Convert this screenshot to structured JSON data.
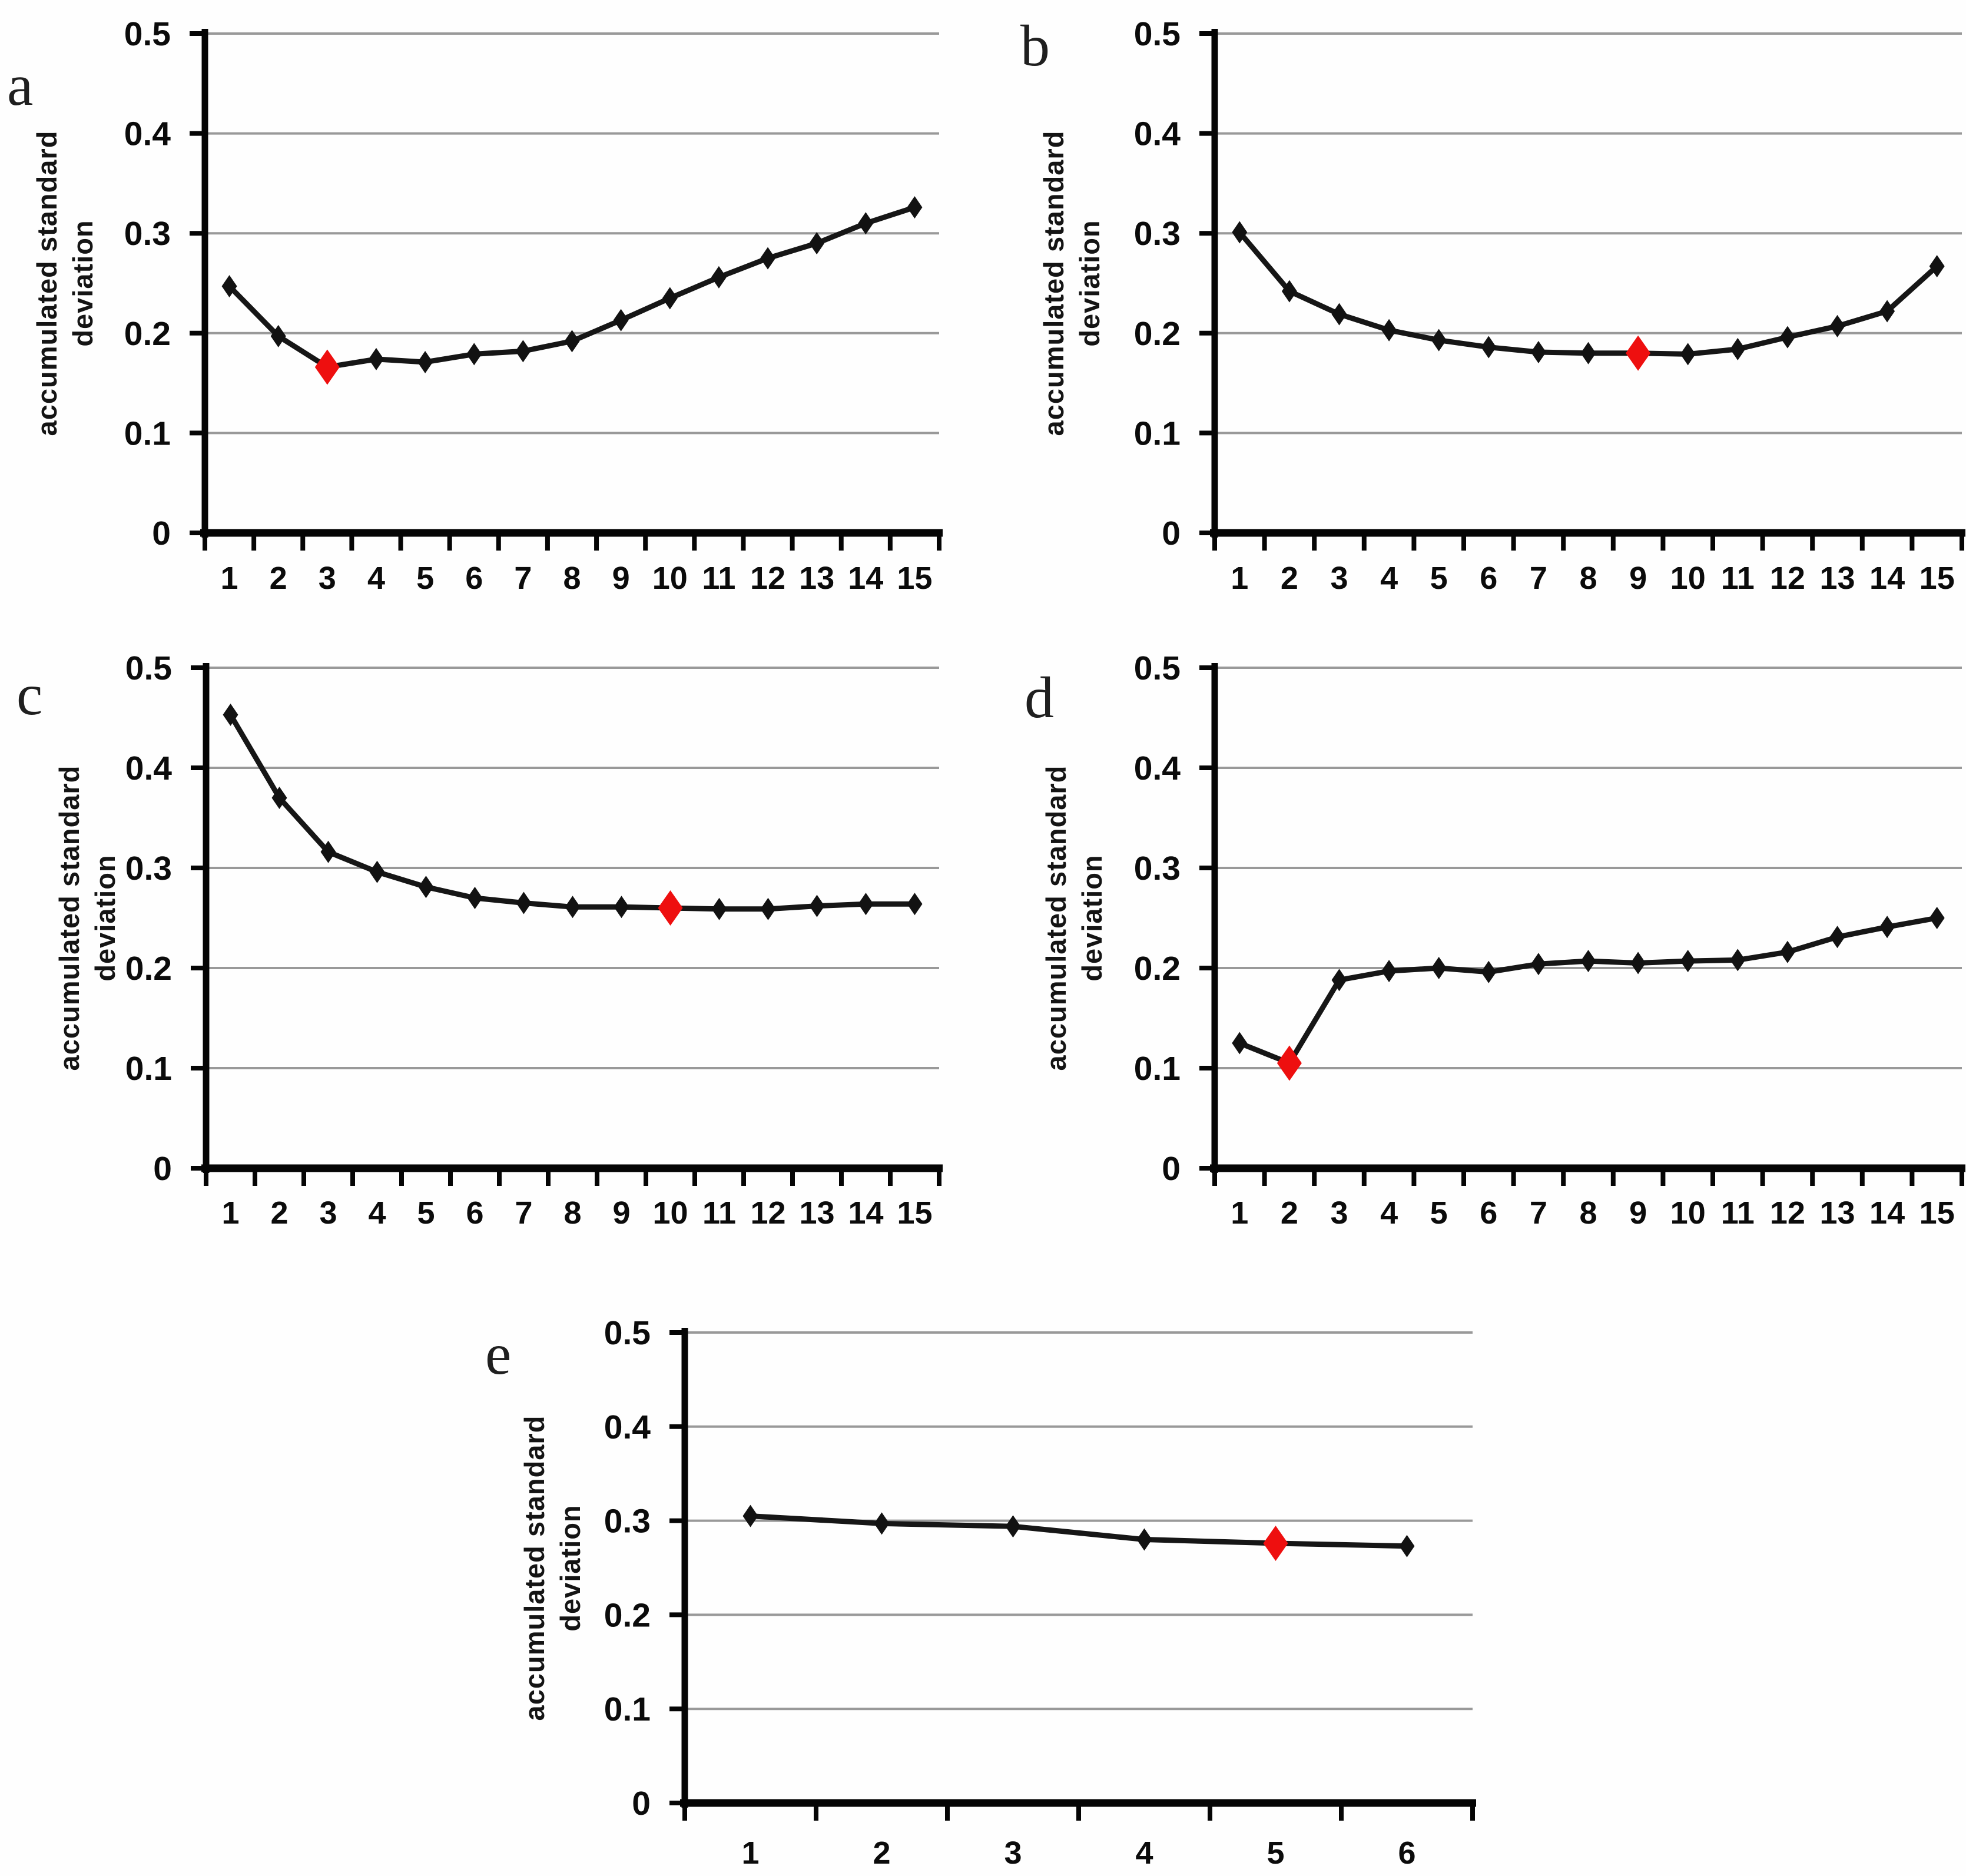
{
  "figure": {
    "panels": [
      {
        "letter": "a",
        "ylabel_lines": [
          "accumulated standard",
          "deviation"
        ]
      },
      {
        "letter": "b",
        "ylabel_lines": [
          "accumulated standard",
          "deviation"
        ]
      },
      {
        "letter": "c",
        "ylabel_lines": [
          "accumulated standard",
          "deviation"
        ]
      },
      {
        "letter": "d",
        "ylabel_lines": [
          "accumulated standard",
          "deviation"
        ]
      },
      {
        "letter": "e",
        "ylabel_lines": [
          "accumulated standard",
          "deviation"
        ]
      }
    ]
  },
  "style": {
    "line_color": "#161616",
    "marker_color": "#121212",
    "highlight_color": "#ee0f0f",
    "grid_color": "#999999",
    "axis_color": "#050505"
  },
  "chart_data": [
    {
      "id": "a",
      "type": "line",
      "title": "",
      "xlabel": "",
      "ylabel": "accumulated standard deviation",
      "x": [
        1,
        2,
        3,
        4,
        5,
        6,
        7,
        8,
        9,
        10,
        11,
        12,
        13,
        14,
        15
      ],
      "values": [
        0.247,
        0.197,
        0.166,
        0.174,
        0.171,
        0.179,
        0.182,
        0.192,
        0.213,
        0.235,
        0.256,
        0.275,
        0.29,
        0.31,
        0.326
      ],
      "highlight_x": 3,
      "highlight_value": 0.166,
      "ylim": [
        0,
        0.5
      ],
      "yticks": [
        0,
        0.1,
        0.2,
        0.3,
        0.4,
        0.5
      ],
      "ytick_labels": [
        "0",
        "0.1",
        "0.2",
        "0.3",
        "0.4",
        "0.5"
      ],
      "grid": true,
      "legend": "none",
      "marker": "diamond"
    },
    {
      "id": "b",
      "type": "line",
      "title": "",
      "xlabel": "",
      "ylabel": "accumulated standard deviation",
      "x": [
        1,
        2,
        3,
        4,
        5,
        6,
        7,
        8,
        9,
        10,
        11,
        12,
        13,
        14,
        15
      ],
      "values": [
        0.301,
        0.242,
        0.219,
        0.203,
        0.193,
        0.186,
        0.181,
        0.18,
        0.18,
        0.179,
        0.184,
        0.196,
        0.207,
        0.222,
        0.267
      ],
      "highlight_x": 9,
      "highlight_value": 0.18,
      "ylim": [
        0,
        0.5
      ],
      "yticks": [
        0,
        0.1,
        0.2,
        0.3,
        0.4,
        0.5
      ],
      "ytick_labels": [
        "0",
        "0.1",
        "0.2",
        "0.3",
        "0.4",
        "0.5"
      ],
      "grid": true,
      "legend": "none",
      "marker": "diamond"
    },
    {
      "id": "c",
      "type": "line",
      "title": "",
      "xlabel": "",
      "ylabel": "accumulated standard deviation",
      "x": [
        1,
        2,
        3,
        4,
        5,
        6,
        7,
        8,
        9,
        10,
        11,
        12,
        13,
        14,
        15
      ],
      "values": [
        0.453,
        0.37,
        0.316,
        0.296,
        0.281,
        0.27,
        0.265,
        0.261,
        0.261,
        0.26,
        0.259,
        0.259,
        0.262,
        0.264,
        0.264
      ],
      "highlight_x": 10,
      "highlight_value": 0.26,
      "ylim": [
        0,
        0.5
      ],
      "yticks": [
        0,
        0.1,
        0.2,
        0.3,
        0.4,
        0.5
      ],
      "ytick_labels": [
        "0",
        "0.1",
        "0.2",
        "0.3",
        "0.4",
        "0.5"
      ],
      "grid": true,
      "legend": "none",
      "marker": "diamond"
    },
    {
      "id": "d",
      "type": "line",
      "title": "",
      "xlabel": "",
      "ylabel": "accumulated standard deviation",
      "x": [
        1,
        2,
        3,
        4,
        5,
        6,
        7,
        8,
        9,
        10,
        11,
        12,
        13,
        14,
        15
      ],
      "values": [
        0.125,
        0.105,
        0.188,
        0.197,
        0.2,
        0.196,
        0.204,
        0.207,
        0.205,
        0.207,
        0.208,
        0.216,
        0.231,
        0.241,
        0.25
      ],
      "highlight_x": 2,
      "highlight_value": 0.105,
      "ylim": [
        0,
        0.5
      ],
      "yticks": [
        0,
        0.1,
        0.2,
        0.3,
        0.4,
        0.5
      ],
      "ytick_labels": [
        "0",
        "0.1",
        "0.2",
        "0.3",
        "0.4",
        "0.5"
      ],
      "grid": true,
      "legend": "none",
      "marker": "diamond"
    },
    {
      "id": "e",
      "type": "line",
      "title": "",
      "xlabel": "",
      "ylabel": "accumulated standard deviation",
      "x": [
        1,
        2,
        3,
        4,
        5,
        6
      ],
      "values": [
        0.305,
        0.297,
        0.294,
        0.28,
        0.276,
        0.273
      ],
      "highlight_x": 5,
      "highlight_value": 0.276,
      "ylim": [
        0,
        0.5
      ],
      "yticks": [
        0,
        0.1,
        0.2,
        0.3,
        0.4,
        0.5
      ],
      "ytick_labels": [
        "0",
        "0.1",
        "0.2",
        "0.3",
        "0.4",
        "0.5"
      ],
      "grid": true,
      "legend": "none",
      "marker": "diamond"
    }
  ]
}
